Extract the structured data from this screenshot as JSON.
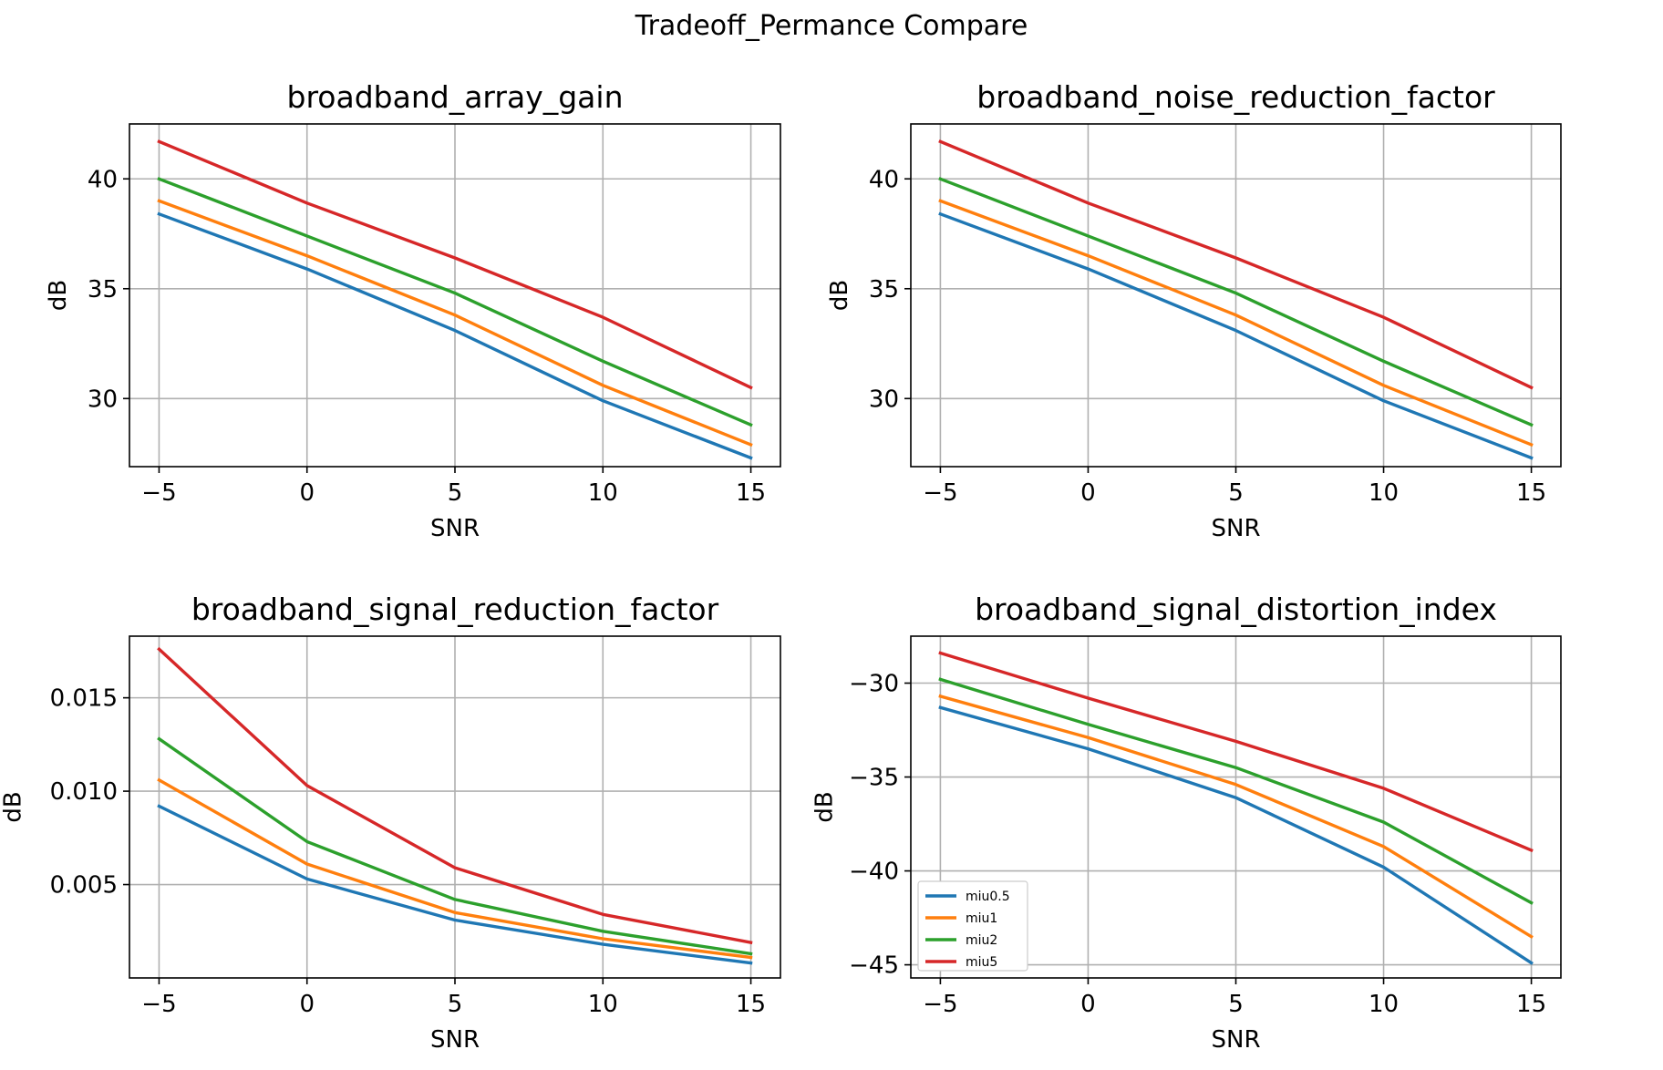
{
  "figure": {
    "suptitle": "Tradeoff_Permance Compare"
  },
  "chart_data": [
    {
      "type": "line",
      "title": "broadband_array_gain",
      "xlabel": "SNR",
      "ylabel": "dB",
      "x": [
        -5,
        0,
        5,
        10,
        15
      ],
      "xlim": [
        -6,
        16
      ],
      "ylim": [
        26.9,
        42.5
      ],
      "xticks": [
        -5,
        0,
        5,
        10,
        15
      ],
      "xtick_labels": [
        "−5",
        "0",
        "5",
        "10",
        "15"
      ],
      "yticks": [
        30,
        35,
        40
      ],
      "ytick_labels": [
        "30",
        "35",
        "40"
      ],
      "grid": true,
      "series": [
        {
          "name": "miu0.5",
          "color": "#1f77b4",
          "values": [
            38.4,
            35.9,
            33.1,
            29.9,
            27.3
          ]
        },
        {
          "name": "miu1",
          "color": "#ff7f0e",
          "values": [
            39.0,
            36.5,
            33.8,
            30.6,
            27.9
          ]
        },
        {
          "name": "miu2",
          "color": "#2ca02c",
          "values": [
            40.0,
            37.4,
            34.8,
            31.7,
            28.8
          ]
        },
        {
          "name": "miu5",
          "color": "#d62728",
          "values": [
            41.7,
            38.9,
            36.4,
            33.7,
            30.5
          ]
        }
      ]
    },
    {
      "type": "line",
      "title": "broadband_noise_reduction_factor",
      "xlabel": "SNR",
      "ylabel": "dB",
      "x": [
        -5,
        0,
        5,
        10,
        15
      ],
      "xlim": [
        -6,
        16
      ],
      "ylim": [
        26.9,
        42.5
      ],
      "xticks": [
        -5,
        0,
        5,
        10,
        15
      ],
      "xtick_labels": [
        "−5",
        "0",
        "5",
        "10",
        "15"
      ],
      "yticks": [
        30,
        35,
        40
      ],
      "ytick_labels": [
        "30",
        "35",
        "40"
      ],
      "grid": true,
      "series": [
        {
          "name": "miu0.5",
          "color": "#1f77b4",
          "values": [
            38.4,
            35.9,
            33.1,
            29.9,
            27.3
          ]
        },
        {
          "name": "miu1",
          "color": "#ff7f0e",
          "values": [
            39.0,
            36.5,
            33.8,
            30.6,
            27.9
          ]
        },
        {
          "name": "miu2",
          "color": "#2ca02c",
          "values": [
            40.0,
            37.4,
            34.8,
            31.7,
            28.8
          ]
        },
        {
          "name": "miu5",
          "color": "#d62728",
          "values": [
            41.7,
            38.9,
            36.4,
            33.7,
            30.5
          ]
        }
      ]
    },
    {
      "type": "line",
      "title": "broadband_signal_reduction_factor",
      "xlabel": "SNR",
      "ylabel": "dB",
      "x": [
        -5,
        0,
        5,
        10,
        15
      ],
      "xlim": [
        -6,
        16
      ],
      "ylim": [
        0.0,
        0.0183
      ],
      "xticks": [
        -5,
        0,
        5,
        10,
        15
      ],
      "xtick_labels": [
        "−5",
        "0",
        "5",
        "10",
        "15"
      ],
      "yticks": [
        0.005,
        0.01,
        0.015
      ],
      "ytick_labels": [
        "0.005",
        "0.010",
        "0.015"
      ],
      "grid": true,
      "series": [
        {
          "name": "miu0.5",
          "color": "#1f77b4",
          "values": [
            0.0092,
            0.0053,
            0.0031,
            0.0018,
            0.0008
          ]
        },
        {
          "name": "miu1",
          "color": "#ff7f0e",
          "values": [
            0.0106,
            0.0061,
            0.0035,
            0.0021,
            0.0011
          ]
        },
        {
          "name": "miu2",
          "color": "#2ca02c",
          "values": [
            0.0128,
            0.0073,
            0.0042,
            0.0025,
            0.0013
          ]
        },
        {
          "name": "miu5",
          "color": "#d62728",
          "values": [
            0.0176,
            0.0103,
            0.0059,
            0.0034,
            0.0019
          ]
        }
      ]
    },
    {
      "type": "line",
      "title": "broadband_signal_distortion_index",
      "xlabel": "SNR",
      "ylabel": "dB",
      "x": [
        -5,
        0,
        5,
        10,
        15
      ],
      "xlim": [
        -6,
        16
      ],
      "ylim": [
        -45.7,
        -27.5
      ],
      "xticks": [
        -5,
        0,
        5,
        10,
        15
      ],
      "xtick_labels": [
        "−5",
        "0",
        "5",
        "10",
        "15"
      ],
      "yticks": [
        -45,
        -40,
        -35,
        -30
      ],
      "ytick_labels": [
        "−45",
        "−40",
        "−35",
        "−30"
      ],
      "grid": true,
      "legend": {
        "placement": "lower-left",
        "entries": [
          "miu0.5",
          "miu1",
          "miu2",
          "miu5"
        ]
      },
      "series": [
        {
          "name": "miu0.5",
          "color": "#1f77b4",
          "values": [
            -31.3,
            -33.5,
            -36.1,
            -39.8,
            -44.9
          ]
        },
        {
          "name": "miu1",
          "color": "#ff7f0e",
          "values": [
            -30.7,
            -32.9,
            -35.4,
            -38.7,
            -43.5
          ]
        },
        {
          "name": "miu2",
          "color": "#2ca02c",
          "values": [
            -29.8,
            -32.2,
            -34.5,
            -37.4,
            -41.7
          ]
        },
        {
          "name": "miu5",
          "color": "#d62728",
          "values": [
            -28.4,
            -30.8,
            -33.1,
            -35.6,
            -38.9
          ]
        }
      ]
    }
  ]
}
